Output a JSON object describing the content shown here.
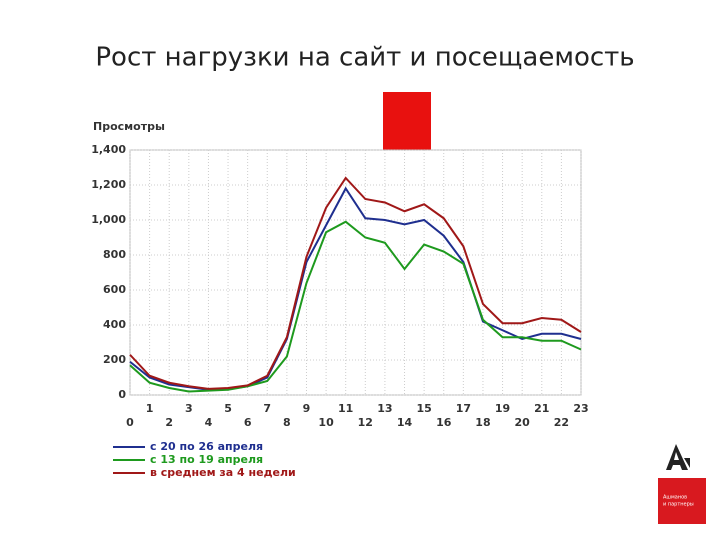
{
  "chart_data": {
    "type": "line",
    "title": "Рост нагрузки на сайт и посещаемость",
    "ylabel": "Просмотры",
    "x": [
      0,
      1,
      2,
      3,
      4,
      5,
      6,
      7,
      8,
      9,
      10,
      11,
      12,
      13,
      14,
      15,
      16,
      17,
      18,
      19,
      20,
      21,
      22,
      23
    ],
    "xlim": [
      0,
      23
    ],
    "xticks": [
      0,
      1,
      2,
      3,
      4,
      5,
      6,
      7,
      8,
      9,
      10,
      11,
      12,
      13,
      14,
      15,
      16,
      17,
      18,
      19,
      20,
      21,
      22,
      23
    ],
    "ylim": [
      0,
      1400
    ],
    "yticks": [
      0,
      200,
      400,
      600,
      800,
      {
        "value": 1000,
        "label": "1,000"
      },
      {
        "value": 1200,
        "label": "1,200"
      },
      {
        "value": 1400,
        "label": "1,400"
      }
    ],
    "grid": true,
    "legend": "bottom-left",
    "series": [
      {
        "name": "с 20 по 26 апреля",
        "color": "#1f2f8f",
        "values": [
          190,
          100,
          60,
          45,
          30,
          35,
          50,
          100,
          320,
          760,
          970,
          1180,
          1010,
          1000,
          975,
          1000,
          910,
          760,
          420,
          370,
          320,
          350,
          350,
          320
        ]
      },
      {
        "name": "с 13 по 19 апреля",
        "color": "#1e9a1e",
        "values": [
          170,
          70,
          40,
          20,
          25,
          30,
          50,
          80,
          220,
          640,
          930,
          990,
          900,
          870,
          720,
          860,
          820,
          750,
          430,
          330,
          330,
          310,
          310,
          260
        ]
      },
      {
        "name": "в среднем за 4 недели",
        "color": "#a01818",
        "values": [
          230,
          110,
          70,
          50,
          35,
          40,
          55,
          110,
          330,
          790,
          1070,
          1240,
          1120,
          1100,
          1050,
          1090,
          1010,
          850,
          520,
          410,
          410,
          440,
          430,
          360
        ]
      }
    ]
  },
  "logo": {
    "lines": [
      "Ашманов",
      "и партнеры"
    ]
  }
}
